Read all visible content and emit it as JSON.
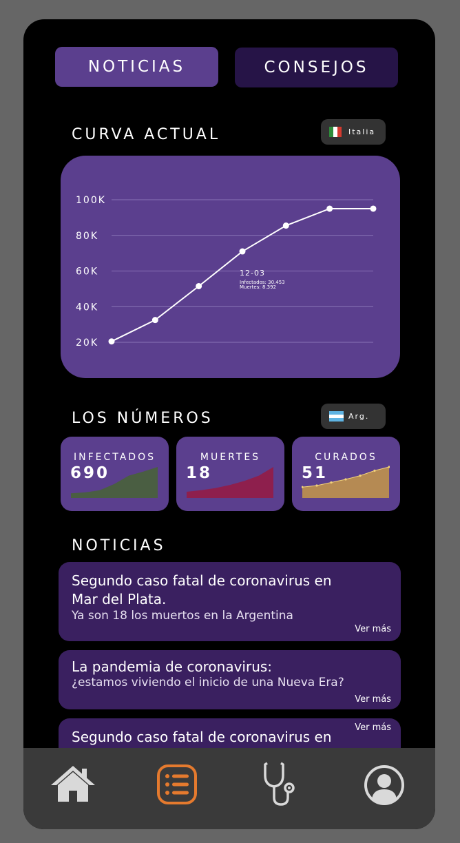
{
  "tabs": [
    {
      "label": "NOTICIAS",
      "active": true
    },
    {
      "label": "CONSEJOS",
      "active": false
    }
  ],
  "curve_section": {
    "title": "CURVA ACTUAL",
    "country": "Italia"
  },
  "chart_data": {
    "type": "line",
    "x": [
      "1",
      "2",
      "3",
      "4",
      "5",
      "6",
      "7"
    ],
    "series": [
      {
        "values": [
          20500,
          32500,
          51500,
          71000,
          85500,
          95000,
          95000
        ]
      }
    ],
    "ylim": [
      20000,
      100000
    ],
    "yticks": [
      "20K",
      "40K",
      "60K",
      "80K",
      "100K"
    ],
    "grid": true,
    "annotation": {
      "date": "12-03",
      "line1": "Infectados: 30.453",
      "line2": "Muertes: 8.392"
    }
  },
  "numbers_section": {
    "title": "LOS NÚMEROS",
    "country": "Arg."
  },
  "stats": [
    {
      "label": "INFECTADOS",
      "value": "690",
      "color": "#4a5e42",
      "trend": [
        0.15,
        0.18,
        0.25,
        0.45,
        0.72,
        0.85,
        1.0
      ]
    },
    {
      "label": "MUERTES",
      "value": "18",
      "color": "#8e1f4d",
      "trend": [
        0.2,
        0.25,
        0.32,
        0.42,
        0.55,
        0.72,
        1.0
      ]
    },
    {
      "label": "CURADOS",
      "value": "51",
      "color": "#b58a53",
      "trend": [
        0.35,
        0.4,
        0.5,
        0.6,
        0.72,
        0.88,
        1.0
      ]
    }
  ],
  "news_section": {
    "title": "NOTICIAS"
  },
  "news": [
    {
      "title_line1": "Segundo caso fatal de coronavirus en",
      "title_line2": "Mar del Plata.",
      "subtitle": "Ya son 18 los muertos en la Argentina",
      "more": "Ver más"
    },
    {
      "title_line1": "La pandemia de coronavirus:",
      "title_line2": "",
      "subtitle": "¿estamos viviendo el inicio de una Nueva Era?",
      "more": "Ver más"
    },
    {
      "title_line1": "Segundo caso fatal de coronavirus en",
      "title_line2": "",
      "subtitle": "",
      "more": "Ver más"
    }
  ],
  "nav": [
    {
      "icon": "home-icon"
    },
    {
      "icon": "list-icon",
      "active": true,
      "color": "#e57a2e"
    },
    {
      "icon": "stethoscope-icon"
    },
    {
      "icon": "profile-icon"
    }
  ]
}
